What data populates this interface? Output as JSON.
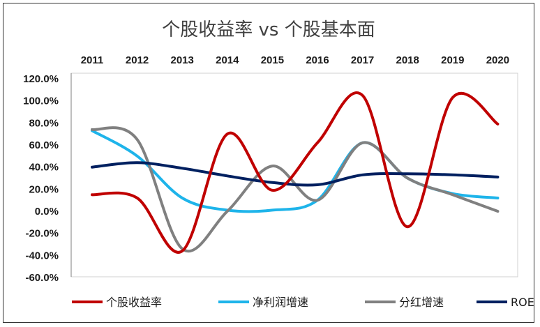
{
  "chart_data": {
    "type": "line",
    "title": "个股收益率 vs 个股基本面",
    "categories": [
      "2011",
      "2012",
      "2013",
      "2014",
      "2015",
      "2016",
      "2017",
      "2018",
      "2019",
      "2020"
    ],
    "y_ticks": [
      120,
      100,
      80,
      60,
      40,
      20,
      0,
      -20,
      -40,
      -60
    ],
    "y_tick_labels": [
      "120.0%",
      "100.0%",
      "80.0%",
      "60.0%",
      "40.0%",
      "20.0%",
      "0.0%",
      "-20.0%",
      "-40.0%",
      "-60.0%"
    ],
    "ylim": [
      -60,
      120
    ],
    "y_unit": "%",
    "grid": false,
    "legend_position": "bottom",
    "series": [
      {
        "name": "个股收益率",
        "color": "#c00000",
        "values": [
          15,
          12,
          -36,
          70,
          19,
          62,
          105,
          -14,
          103,
          79
        ]
      },
      {
        "name": "净利润增速",
        "color": "#1eb4ea",
        "values": [
          73,
          50,
          12,
          1,
          1,
          10,
          62,
          30,
          16,
          12
        ]
      },
      {
        "name": "分红增速",
        "color": "#808080",
        "values": [
          74,
          65,
          -34,
          0,
          41,
          10,
          62,
          30,
          15,
          0
        ]
      },
      {
        "name": "ROE",
        "color": "#002060",
        "values": [
          40,
          44,
          39,
          32,
          26,
          24,
          33,
          34,
          33,
          31
        ]
      }
    ]
  }
}
